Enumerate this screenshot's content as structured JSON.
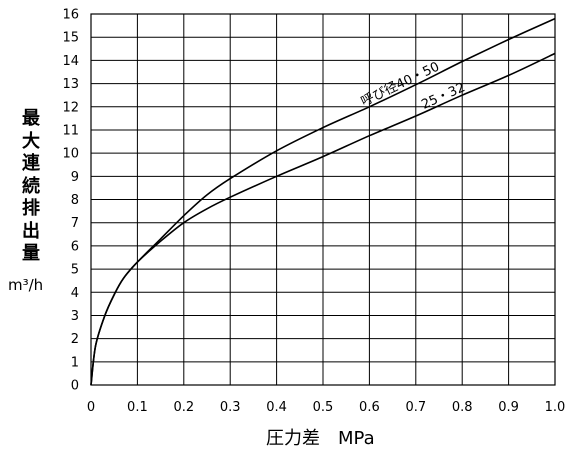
{
  "chart_data": {
    "type": "line",
    "xlabel": "圧力差　MPa",
    "ylabel": "最大連続排出量",
    "unit": "m³/h",
    "xlim": [
      0,
      1.0
    ],
    "ylim": [
      0,
      16
    ],
    "grid": true,
    "x_ticks": [
      "0",
      "0.1",
      "0.2",
      "0.3",
      "0.4",
      "0.5",
      "0.6",
      "0.7",
      "0.8",
      "0.9",
      "1.0"
    ],
    "y_ticks": [
      "0",
      "1",
      "2",
      "3",
      "4",
      "5",
      "6",
      "7",
      "8",
      "9",
      "10",
      "11",
      "12",
      "13",
      "14",
      "15",
      "16"
    ],
    "series": [
      {
        "name": "呼び径40・50",
        "points": [
          [
            0,
            0
          ],
          [
            0.01,
            1.7
          ],
          [
            0.03,
            3.0
          ],
          [
            0.05,
            3.9
          ],
          [
            0.07,
            4.6
          ],
          [
            0.1,
            5.3
          ],
          [
            0.15,
            6.3
          ],
          [
            0.2,
            7.3
          ],
          [
            0.25,
            8.2
          ],
          [
            0.3,
            8.9
          ],
          [
            0.4,
            10.1
          ],
          [
            0.5,
            11.1
          ],
          [
            0.6,
            12.0
          ],
          [
            0.7,
            12.95
          ],
          [
            0.8,
            13.95
          ],
          [
            0.9,
            14.9
          ],
          [
            1.0,
            15.8
          ]
        ]
      },
      {
        "name": "25・32",
        "points": [
          [
            0,
            0
          ],
          [
            0.01,
            1.7
          ],
          [
            0.03,
            3.0
          ],
          [
            0.05,
            3.9
          ],
          [
            0.07,
            4.6
          ],
          [
            0.1,
            5.3
          ],
          [
            0.15,
            6.2
          ],
          [
            0.2,
            7.0
          ],
          [
            0.25,
            7.6
          ],
          [
            0.3,
            8.1
          ],
          [
            0.4,
            9.0
          ],
          [
            0.5,
            9.85
          ],
          [
            0.6,
            10.75
          ],
          [
            0.7,
            11.6
          ],
          [
            0.8,
            12.5
          ],
          [
            0.9,
            13.35
          ],
          [
            1.0,
            14.3
          ]
        ]
      }
    ]
  }
}
